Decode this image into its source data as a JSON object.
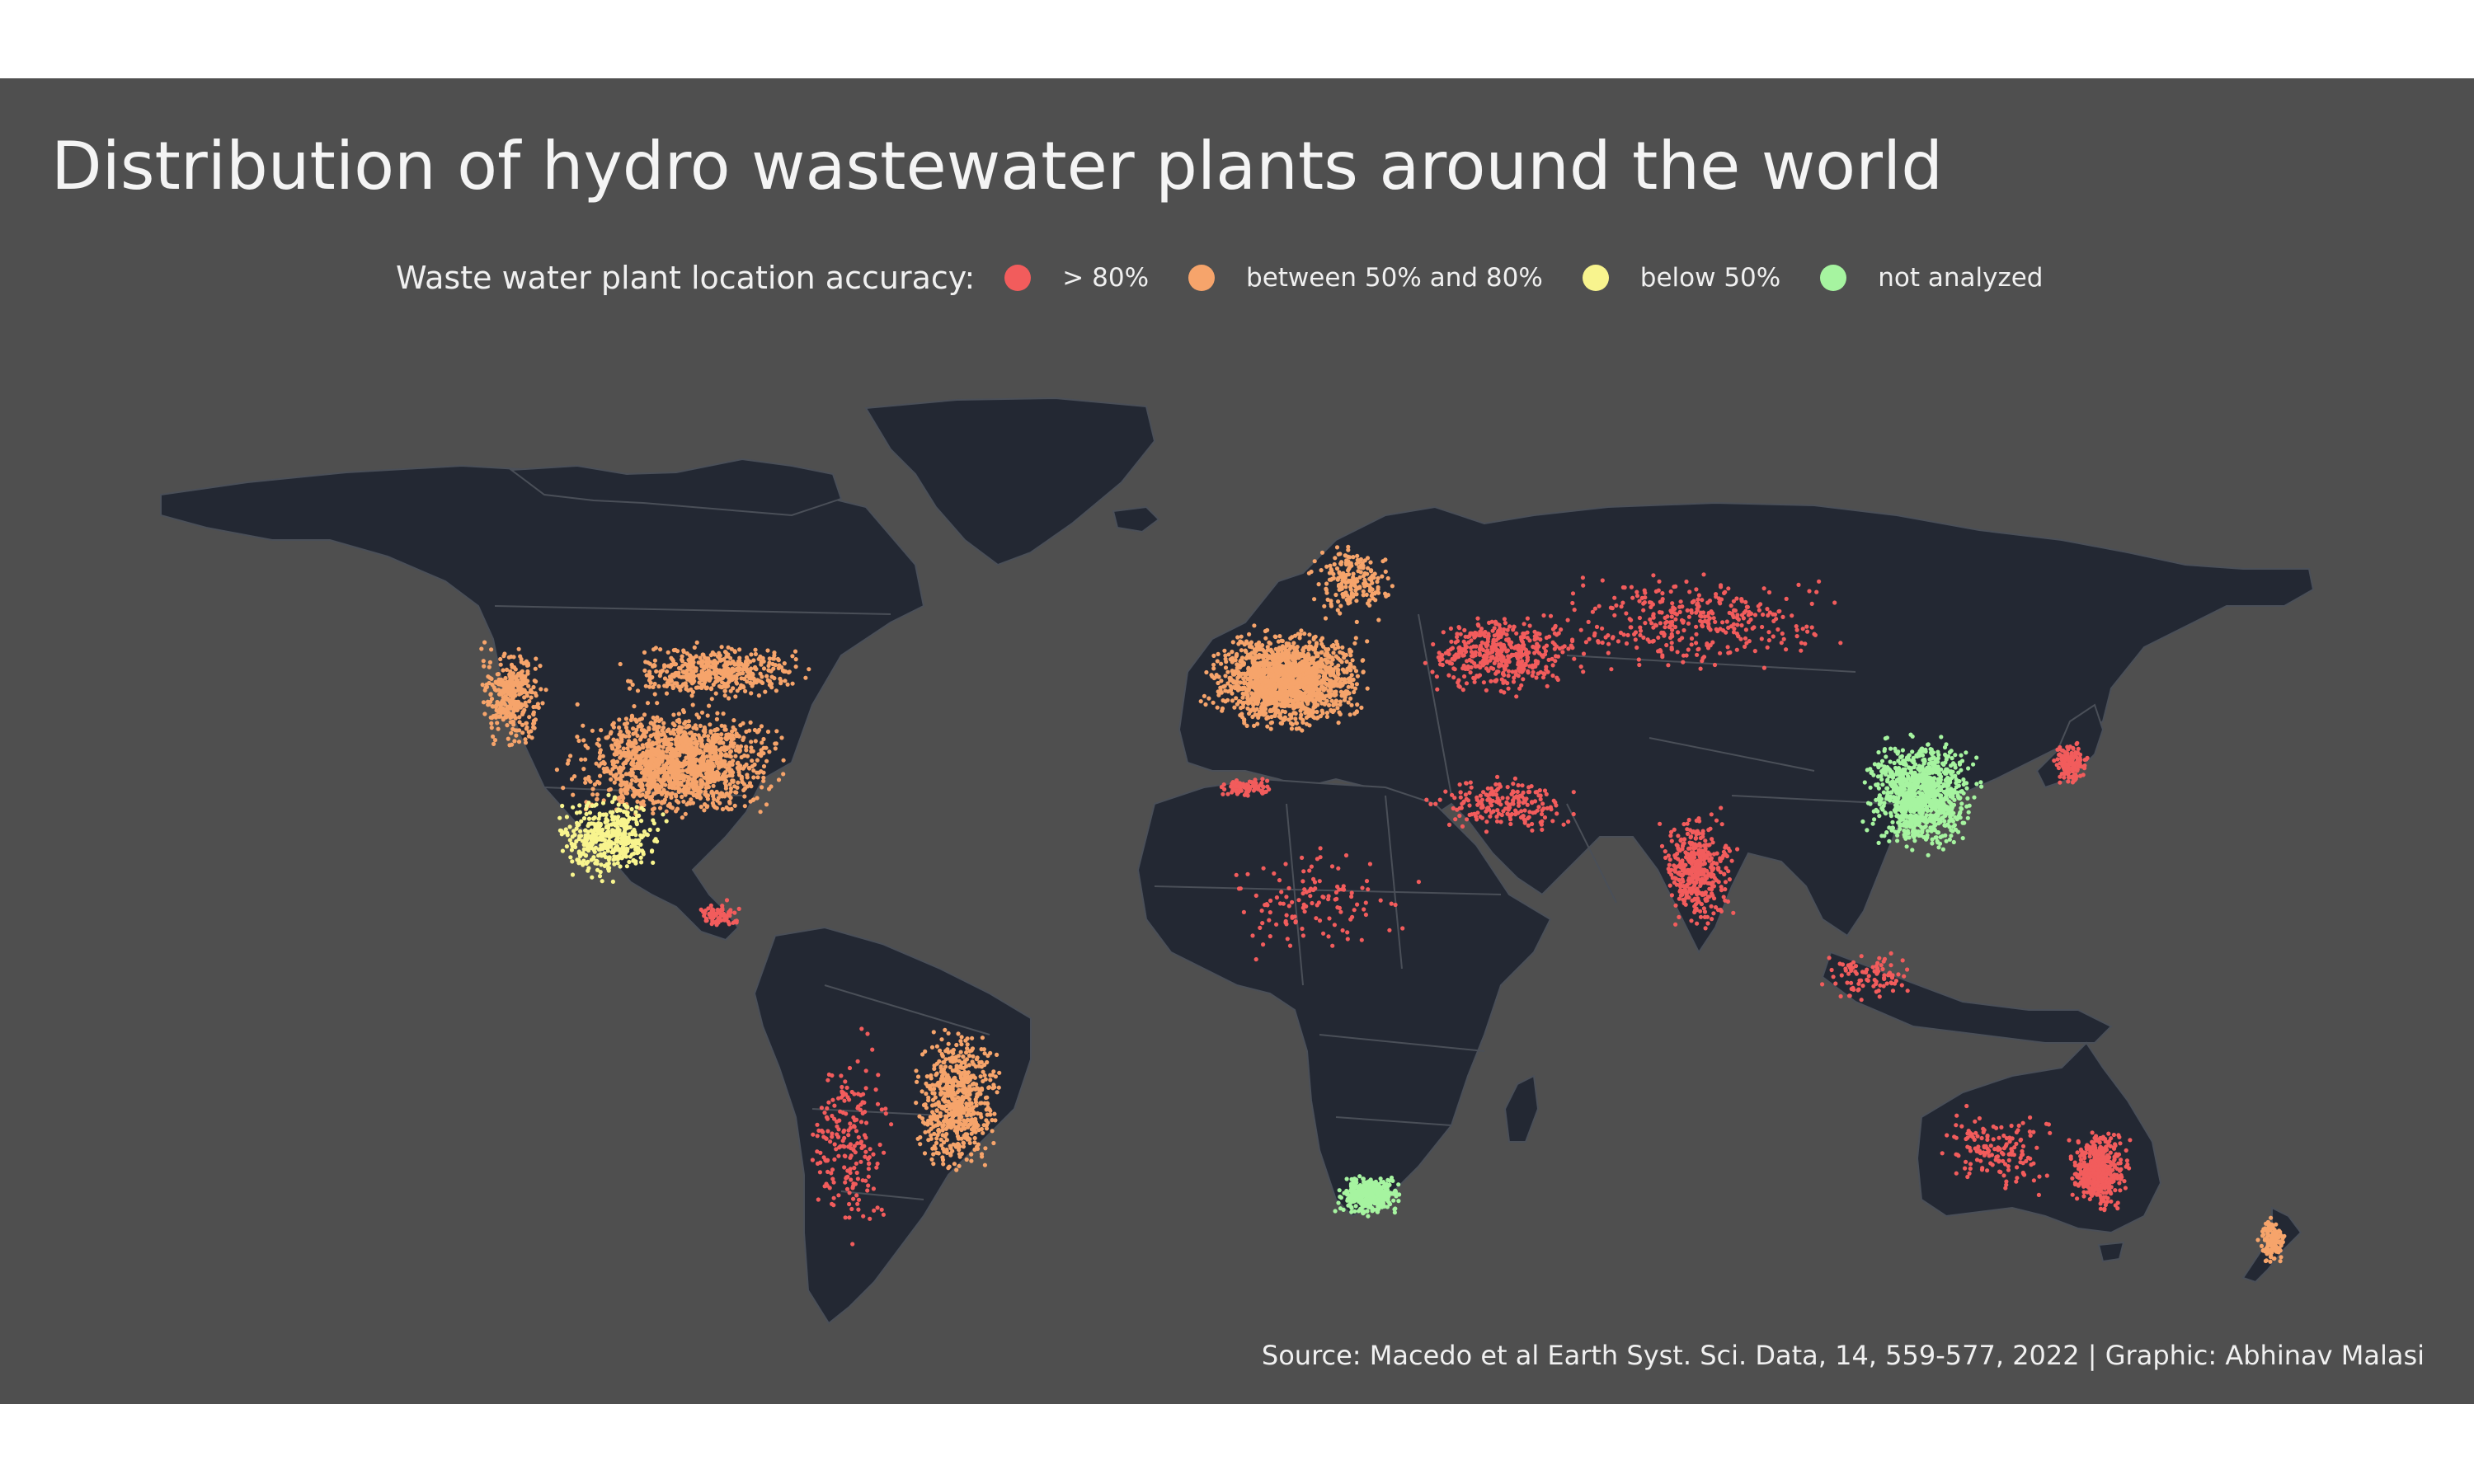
{
  "title": "Distribution of hydro wastewater plants around the world",
  "legend": {
    "title": "Waste water plant location accuracy:",
    "items": [
      {
        "label": "> 80%",
        "color": "#f25c5c"
      },
      {
        "label": "between 50% and 80%",
        "color": "#f6a46b"
      },
      {
        "label": "below 50%",
        "color": "#f8f48e"
      },
      {
        "label": "not analyzed",
        "color": "#a6f4a0"
      }
    ]
  },
  "caption": "Source: Macedo et al Earth Syst. Sci. Data, 14, 559-577, 2022 | Graphic: Abhinav Malasi",
  "colors": {
    "background": "#4f4f4f",
    "land": "#232833",
    "border": "#4a4f58"
  }
}
